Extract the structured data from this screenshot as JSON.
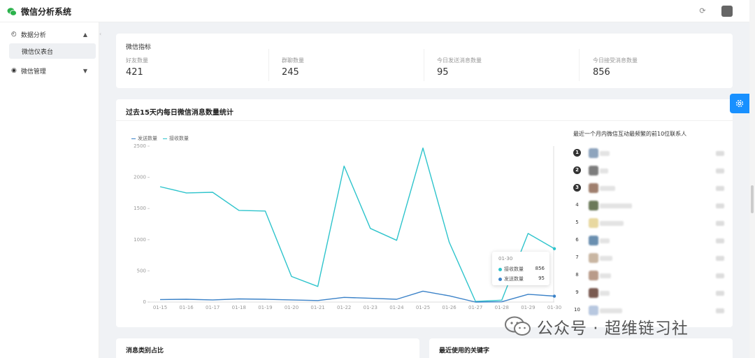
{
  "app": {
    "title": "微信分析系统"
  },
  "sidebar": {
    "items": [
      {
        "label": "数据分析",
        "expanded": true,
        "children": [
          {
            "label": "微信仪表台",
            "active": true
          }
        ]
      },
      {
        "label": "微信管理",
        "expanded": false
      }
    ]
  },
  "stats": {
    "title": "微信指标",
    "items": [
      {
        "label": "好友数量",
        "value": "421"
      },
      {
        "label": "群聊数量",
        "value": "245"
      },
      {
        "label": "今日发送消息数量",
        "value": "95"
      },
      {
        "label": "今日接受消息数量",
        "value": "856"
      }
    ]
  },
  "chart_card": {
    "title": "过去15天内每日微信消息数量统计",
    "contacts_title": "最近一个月内微信互动最频繁的前10位联系人",
    "tooltip": {
      "date": "01-30",
      "rows": [
        {
          "label": "接收数量",
          "value": "856"
        },
        {
          "label": "发送数量",
          "value": "95"
        }
      ]
    },
    "contacts": [
      {
        "rank": "1",
        "avatar_color": "#8ea4bd"
      },
      {
        "rank": "2",
        "avatar_color": "#7d7d7d"
      },
      {
        "rank": "3",
        "avatar_color": "#a0806e"
      },
      {
        "rank": "4",
        "avatar_color": "#6b7a5a"
      },
      {
        "rank": "5",
        "avatar_color": "#e8d8a0"
      },
      {
        "rank": "6",
        "avatar_color": "#6a8fb0"
      },
      {
        "rank": "7",
        "avatar_color": "#c9b6a2"
      },
      {
        "rank": "8",
        "avatar_color": "#b99b8a"
      },
      {
        "rank": "9",
        "avatar_color": "#7a5a50"
      },
      {
        "rank": "10",
        "avatar_color": "#b8c8e0"
      }
    ]
  },
  "chart_data": {
    "type": "line",
    "x": [
      "01-15",
      "01-16",
      "01-17",
      "01-18",
      "01-19",
      "01-20",
      "01-21",
      "01-22",
      "01-23",
      "01-24",
      "01-25",
      "01-26",
      "01-27",
      "01-28",
      "01-29",
      "01-30"
    ],
    "series": [
      {
        "name": "发送数量",
        "color": "#3b82c8",
        "values": [
          40,
          45,
          35,
          50,
          45,
          35,
          25,
          75,
          60,
          45,
          175,
          100,
          0,
          5,
          125,
          95
        ]
      },
      {
        "name": "接收数量",
        "color": "#2ec4cc",
        "values": [
          1850,
          1750,
          1760,
          1470,
          1460,
          410,
          250,
          2180,
          1180,
          990,
          2470,
          960,
          10,
          30,
          1100,
          856
        ]
      }
    ],
    "ylim": [
      0,
      2500
    ],
    "yticks": [
      "0",
      "500",
      "1000",
      "1500",
      "2000",
      "2500"
    ],
    "legend": "top-left",
    "grid": false
  },
  "bottom": {
    "left_title": "消息类别占比",
    "right_title": "最近使用的关键字"
  },
  "watermark": {
    "text": "公众号 · 超维链习社"
  }
}
